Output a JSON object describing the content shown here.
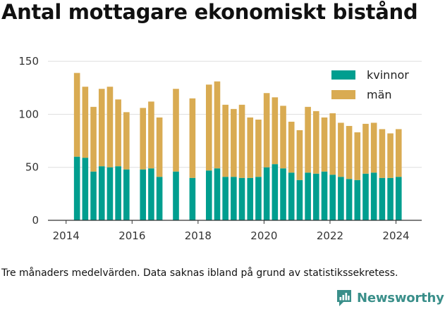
{
  "chart_data": {
    "type": "bar",
    "stacked": true,
    "title": "Antal mottagare ekonomiskt bistånd",
    "xlabel": "",
    "ylabel": "",
    "xlim": [
      2013.45,
      2024.78
    ],
    "ylim": [
      0,
      160
    ],
    "yticks": [
      0,
      50,
      100,
      150
    ],
    "xticks": [
      2014,
      2016,
      2018,
      2020,
      2022,
      2024
    ],
    "grid": "horizontal",
    "legend": "top-right",
    "colors": {
      "kvinnor": "#009e8f",
      "man": "#d9ab52"
    },
    "x": [
      2014.33,
      2014.58,
      2014.83,
      2015.08,
      2015.33,
      2015.58,
      2015.83,
      2016.33,
      2016.58,
      2016.83,
      2017.33,
      2017.83,
      2018.33,
      2018.58,
      2018.83,
      2019.08,
      2019.33,
      2019.58,
      2019.83,
      2020.08,
      2020.33,
      2020.58,
      2020.83,
      2021.08,
      2021.33,
      2021.58,
      2021.83,
      2022.08,
      2022.33,
      2022.58,
      2022.83,
      2023.08,
      2023.33,
      2023.58,
      2023.83,
      2024.08
    ],
    "series": [
      {
        "name": "kvinnor",
        "values": [
          60,
          59,
          46,
          51,
          50,
          51,
          48,
          48,
          49,
          41,
          46,
          40,
          47,
          49,
          41,
          41,
          40,
          40,
          41,
          50,
          53,
          49,
          45,
          38,
          45,
          44,
          46,
          43,
          41,
          39,
          38,
          44,
          45,
          40,
          40,
          41
        ]
      },
      {
        "name": "män",
        "values": [
          79,
          67,
          61,
          73,
          76,
          63,
          54,
          58,
          63,
          56,
          78,
          75,
          81,
          82,
          68,
          64,
          69,
          57,
          54,
          70,
          63,
          59,
          48,
          47,
          62,
          59,
          51,
          58,
          51,
          50,
          45,
          47,
          47,
          46,
          42,
          45
        ]
      }
    ]
  },
  "footnote": "Tre månaders medelvärden. Data saknas ibland på grund av statistikssekretess.",
  "brand": {
    "name": "Newsworthy",
    "icon": "newsworthy-logo-icon"
  }
}
